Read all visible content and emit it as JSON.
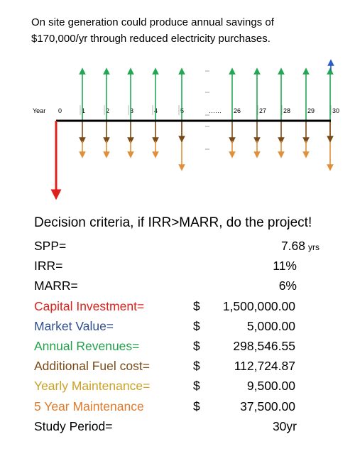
{
  "intro": {
    "line1": "On site generation could produce annual savings of",
    "line2": "$170,000/yr through reduced electricity purchases."
  },
  "timeline": {
    "axis_label": "Year",
    "year_labels": [
      "0",
      "1",
      "2",
      "3",
      "4",
      "5",
      "……",
      "26",
      "27",
      "28",
      "29",
      "30"
    ],
    "colors": {
      "revenue": "#22a855",
      "fuel": "#7a4a16",
      "maintenance": "#e0903a",
      "investment": "#e0201a",
      "market_value": "#2a5cc8",
      "axis": "#000000"
    }
  },
  "criteria": {
    "title": "Decision criteria, if IRR>MARR, do the project!",
    "rows": [
      {
        "label": "SPP=",
        "dollar": "",
        "value": "7.68",
        "unit": "yrs",
        "color": "#000000"
      },
      {
        "label": "IRR=",
        "dollar": "",
        "value": "11%",
        "unit": "",
        "color": "#000000"
      },
      {
        "label": "MARR=",
        "dollar": "",
        "value": "6%",
        "unit": "",
        "color": "#000000"
      },
      {
        "label": "Capital Investment=",
        "dollar": "$",
        "value": "1,500,000.00",
        "unit": "",
        "color": "#e0201a"
      },
      {
        "label": "Market Value=",
        "dollar": "$",
        "value": "5,000.00",
        "unit": "",
        "color": "#2f4f8f"
      },
      {
        "label": "Annual Revenues=",
        "dollar": "$",
        "value": "298,546.55",
        "unit": "",
        "color": "#22a14a"
      },
      {
        "label": "Additional Fuel cost=",
        "dollar": "$",
        "value": "112,724.87",
        "unit": "",
        "color": "#7a4a16"
      },
      {
        "label": "Yearly Maintenance=",
        "dollar": "$",
        "value": "9,500.00",
        "unit": "",
        "color": "#c9a227"
      },
      {
        "label": "5 Year Maintenance",
        "dollar": "$",
        "value": "37,500.00",
        "unit": "",
        "color": "#e07a2a"
      },
      {
        "label": "Study Period=",
        "dollar": "",
        "value": "30yr",
        "unit": "",
        "color": "#000000"
      }
    ]
  }
}
